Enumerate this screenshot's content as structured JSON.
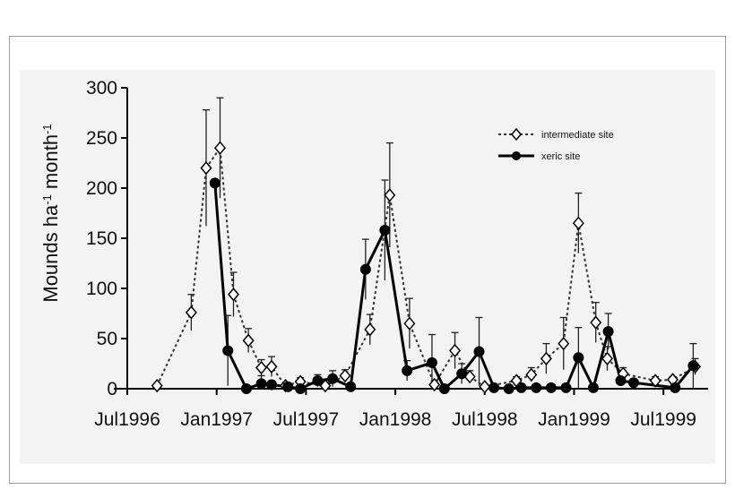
{
  "chart_data": {
    "type": "line",
    "title": "",
    "xlabel": "",
    "ylabel": "Mounds ha-1 month-1",
    "ylabel_parts": {
      "main": "Mounds ha",
      "exp1": "-1",
      "middle": " month",
      "exp2": "-1"
    },
    "ylim": [
      0,
      300
    ],
    "yticks": [
      0,
      50,
      100,
      150,
      200,
      250,
      300
    ],
    "xlim": [
      "1996-07",
      "1999-10"
    ],
    "xticks": [
      {
        "date": "1996-07",
        "label": "Jul1996"
      },
      {
        "date": "1997-01",
        "label": "Jan1997"
      },
      {
        "date": "1997-07",
        "label": "Jul1997"
      },
      {
        "date": "1998-01",
        "label": "Jan1998"
      },
      {
        "date": "1998-07",
        "label": "Jul1998"
      },
      {
        "date": "1999-01",
        "label": "Jan1999"
      },
      {
        "date": "1999-07",
        "label": "Jul1999"
      }
    ],
    "grid": false,
    "legend_position": "top-right",
    "series": [
      {
        "name": "intermediate site",
        "style": "dashed",
        "marker": "open-diamond",
        "color": "#333333",
        "points": [
          {
            "x": "1996-09-01",
            "y": 3,
            "err": 0
          },
          {
            "x": "1996-11-10",
            "y": 76,
            "err": 18
          },
          {
            "x": "1996-12-10",
            "y": 220,
            "err": 58
          },
          {
            "x": "1997-01-08",
            "y": 240,
            "err": 50
          },
          {
            "x": "1997-02-05",
            "y": 94,
            "err": 22
          },
          {
            "x": "1997-03-05",
            "y": 48,
            "err": 12
          },
          {
            "x": "1997-04-01",
            "y": 21,
            "err": 8
          },
          {
            "x": "1997-04-22",
            "y": 22,
            "err": 10
          },
          {
            "x": "1997-05-20",
            "y": 3,
            "err": 3
          },
          {
            "x": "1997-06-20",
            "y": 7,
            "err": 4
          },
          {
            "x": "1997-08-10",
            "y": 3,
            "err": 3
          },
          {
            "x": "1997-09-20",
            "y": 13,
            "err": 6
          },
          {
            "x": "1997-11-10",
            "y": 59,
            "err": 15
          },
          {
            "x": "1997-12-20",
            "y": 193,
            "err": 52
          },
          {
            "x": "1998-01-30",
            "y": 65,
            "err": 25
          },
          {
            "x": "1998-03-20",
            "y": 4,
            "err": 4
          },
          {
            "x": "1998-05-01",
            "y": 38,
            "err": 18
          },
          {
            "x": "1998-06-01",
            "y": 12,
            "err": 6
          },
          {
            "x": "1998-07-01",
            "y": 2,
            "err": 2
          },
          {
            "x": "1998-09-05",
            "y": 8,
            "err": 4
          },
          {
            "x": "1998-10-05",
            "y": 14,
            "err": 7
          },
          {
            "x": "1998-11-05",
            "y": 30,
            "err": 15
          },
          {
            "x": "1998-12-10",
            "y": 45,
            "err": 26
          },
          {
            "x": "1999-01-10",
            "y": 165,
            "err": 30
          },
          {
            "x": "1999-02-15",
            "y": 66,
            "err": 20
          },
          {
            "x": "1999-03-08",
            "y": 30,
            "err": 12
          },
          {
            "x": "1999-04-10",
            "y": 15,
            "err": 6
          },
          {
            "x": "1999-06-15",
            "y": 8,
            "err": 4
          },
          {
            "x": "1999-07-20",
            "y": 9,
            "err": 3
          },
          {
            "x": "1999-09-05",
            "y": 22,
            "err": 8
          }
        ]
      },
      {
        "name": "xeric site",
        "style": "solid",
        "marker": "filled-circle",
        "color": "#000000",
        "points": [
          {
            "x": "1996-12-28",
            "y": 205,
            "err": 0
          },
          {
            "x": "1997-01-24",
            "y": 38,
            "err": 35
          },
          {
            "x": "1997-03-01",
            "y": 0,
            "err": 0
          },
          {
            "x": "1997-04-01",
            "y": 5,
            "err": 8
          },
          {
            "x": "1997-04-22",
            "y": 4,
            "err": 4
          },
          {
            "x": "1997-05-25",
            "y": 2,
            "err": 2
          },
          {
            "x": "1997-06-20",
            "y": 0,
            "err": 0
          },
          {
            "x": "1997-07-25",
            "y": 8,
            "err": 6
          },
          {
            "x": "1997-08-25",
            "y": 10,
            "err": 8
          },
          {
            "x": "1997-10-01",
            "y": 2,
            "err": 2
          },
          {
            "x": "1997-11-01",
            "y": 119,
            "err": 30
          },
          {
            "x": "1997-12-10",
            "y": 158,
            "err": 50
          },
          {
            "x": "1998-01-25",
            "y": 18,
            "err": 10
          },
          {
            "x": "1998-03-15",
            "y": 26,
            "err": 28
          },
          {
            "x": "1998-04-10",
            "y": 0,
            "err": 0
          },
          {
            "x": "1998-05-15",
            "y": 15,
            "err": 10
          },
          {
            "x": "1998-06-20",
            "y": 37,
            "err": 34
          },
          {
            "x": "1998-07-20",
            "y": 1,
            "err": 1
          },
          {
            "x": "1998-08-20",
            "y": 0,
            "err": 0
          },
          {
            "x": "1998-09-15",
            "y": 1,
            "err": 1
          },
          {
            "x": "1998-10-15",
            "y": 1,
            "err": 1
          },
          {
            "x": "1998-11-15",
            "y": 1,
            "err": 1
          },
          {
            "x": "1998-12-15",
            "y": 1,
            "err": 1
          },
          {
            "x": "1999-01-10",
            "y": 31,
            "err": 30
          },
          {
            "x": "1999-02-10",
            "y": 1,
            "err": 1
          },
          {
            "x": "1999-03-10",
            "y": 57,
            "err": 18
          },
          {
            "x": "1999-04-05",
            "y": 8,
            "err": 4
          },
          {
            "x": "1999-05-01",
            "y": 6,
            "err": 3
          },
          {
            "x": "1999-07-25",
            "y": 1,
            "err": 1
          },
          {
            "x": "1999-09-01",
            "y": 23,
            "err": 22
          }
        ]
      }
    ]
  }
}
